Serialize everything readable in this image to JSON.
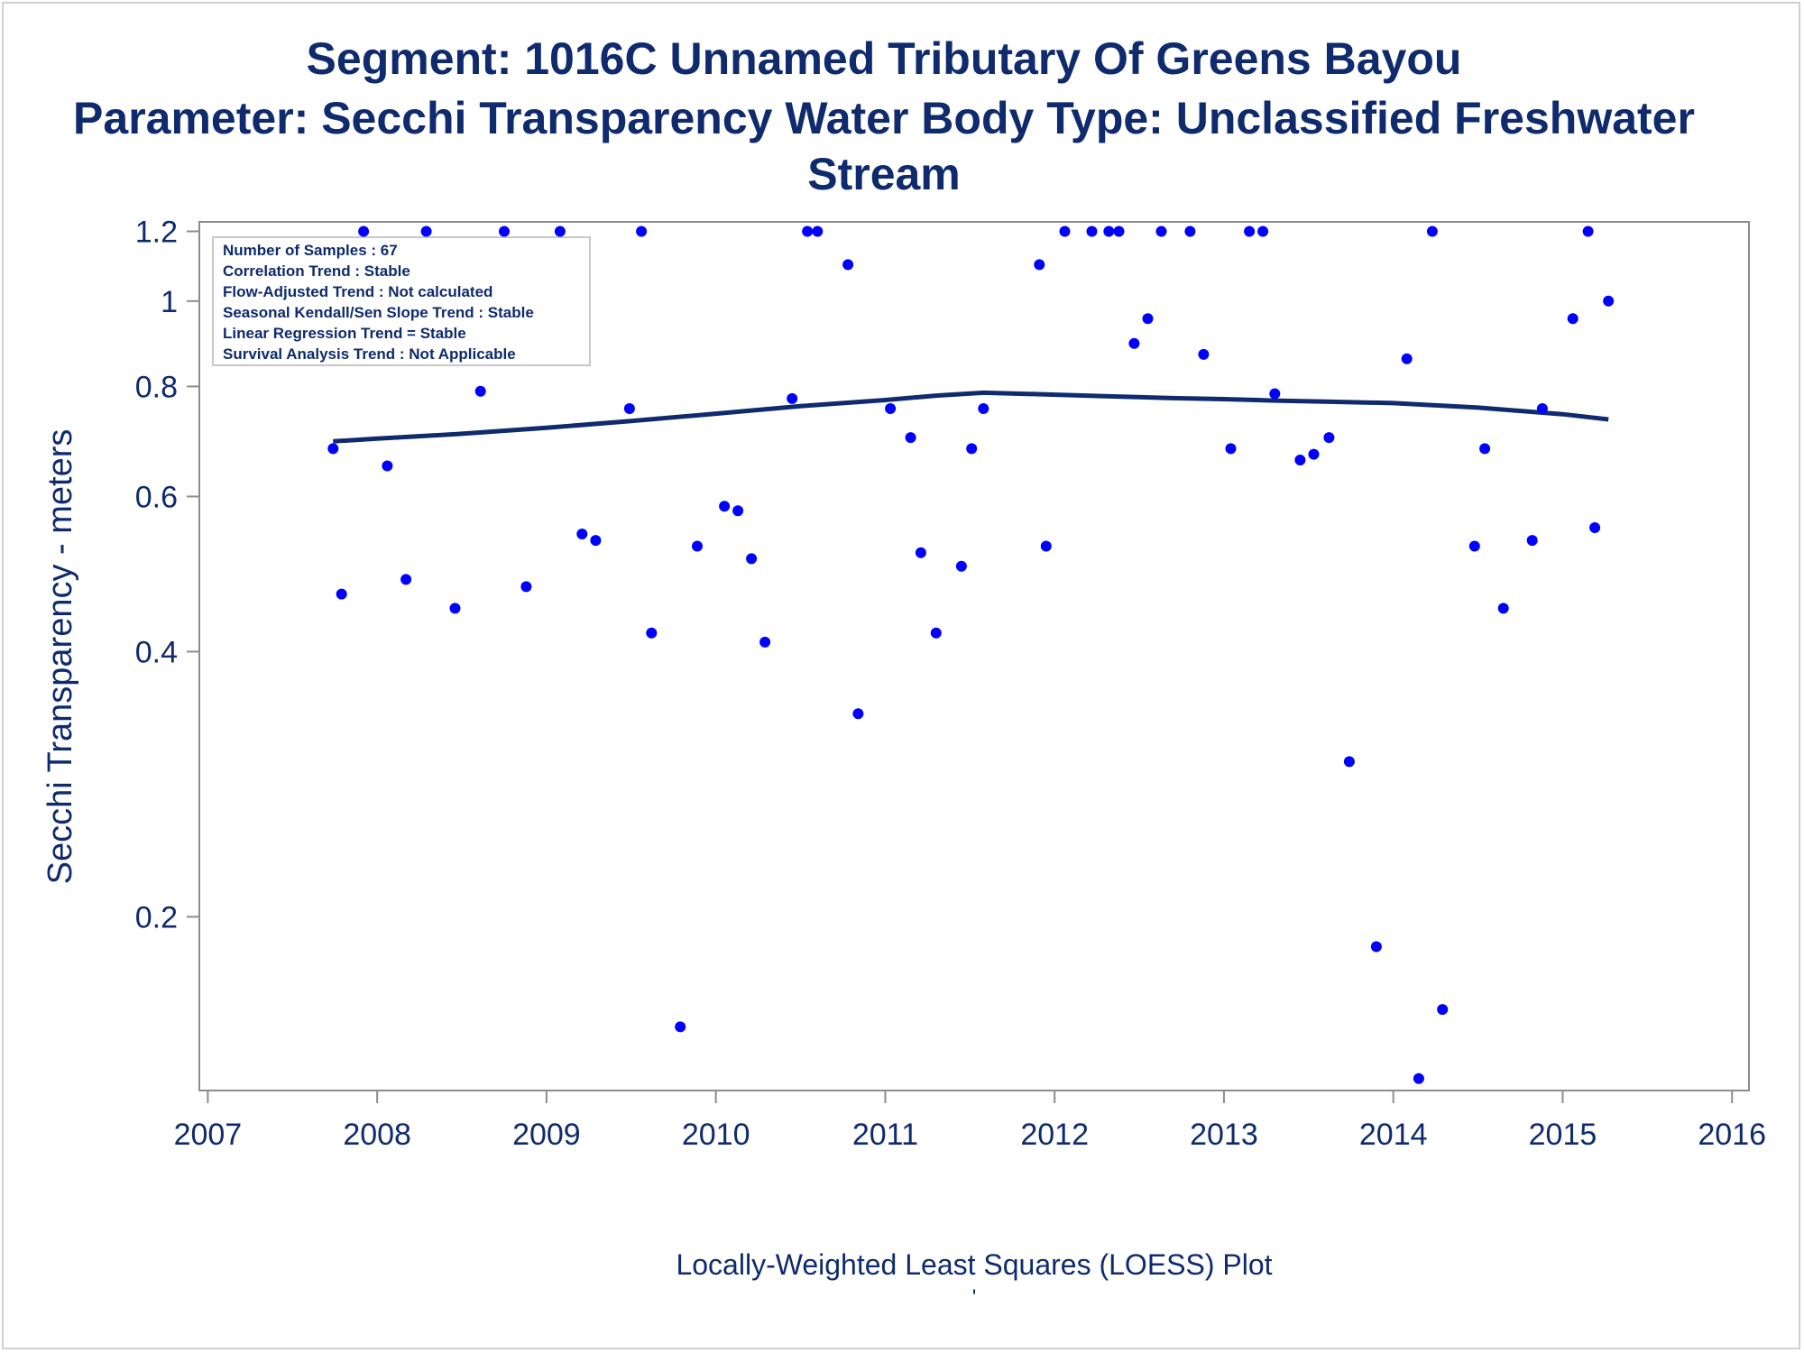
{
  "titles": {
    "line1": "Segment: 1016C  Unnamed Tributary Of Greens Bayou",
    "line2": "Parameter: Secchi Transparency   Water Body Type: Unclassified Freshwater",
    "line3": "Stream"
  },
  "colors": {
    "text": "#0f2b6e",
    "points": "#0000ff",
    "loess": "#0f2b6e",
    "axis": "#8c8c8c"
  },
  "chart_data": {
    "type": "scatter",
    "ylabel": "Secchi Transparency - meters",
    "xlabel": "Locally-Weighted Least Squares (LOESS) Plot",
    "footnote": "'",
    "y_scale": "log",
    "x_ticks": [
      2007,
      2008,
      2009,
      2010,
      2011,
      2012,
      2013,
      2014,
      2015,
      2016
    ],
    "x_tick_labels": [
      "2007",
      "2008",
      "2009",
      "2010",
      "2011",
      "2012",
      "2013",
      "2014",
      "2015",
      "2016"
    ],
    "y_ticks": [
      0.2,
      0.4,
      0.6,
      0.8,
      1,
      1.2
    ],
    "y_tick_labels": [
      "0.2",
      "0.4",
      "0.6",
      "0.8",
      "1",
      "1.2"
    ],
    "xlim": [
      2006.95,
      2016.1
    ],
    "ylim": [
      0.127,
      1.23
    ],
    "legend_position": "top-left",
    "info_box": [
      "Number of Samples : 67",
      "Correlation Trend : Stable",
      "Flow-Adjusted Trend : Not calculated",
      "Seasonal Kendall/Sen Slope Trend : Stable",
      "Linear Regression Trend = Stable",
      "Survival Analysis Trend : Not Applicable"
    ],
    "series": [
      {
        "kind": "points",
        "x": [
          2007.74,
          2007.79,
          2007.92,
          2008.06,
          2008.17,
          2008.29,
          2008.46,
          2008.61,
          2008.75,
          2008.88,
          2009.08,
          2009.21,
          2009.29,
          2009.49,
          2009.56,
          2009.62,
          2009.79,
          2009.89,
          2010.05,
          2010.13,
          2010.21,
          2010.29,
          2010.45,
          2010.54,
          2010.6,
          2010.78,
          2010.84,
          2011.03,
          2011.15,
          2011.21,
          2011.45,
          2011.3,
          2011.51,
          2011.58,
          2011.91,
          2011.95,
          2012.06,
          2012.22,
          2012.32,
          2012.38,
          2012.47,
          2012.55,
          2012.63,
          2012.8,
          2012.88,
          2013.04,
          2013.15,
          2013.23,
          2013.3,
          2013.45,
          2013.53,
          2013.62,
          2013.74,
          2013.9,
          2014.08,
          2014.15,
          2014.23,
          2014.29,
          2014.48,
          2014.54,
          2014.65,
          2014.82,
          2014.88,
          2015.06,
          2015.15,
          2015.19,
          2015.27
        ],
        "y": [
          0.68,
          0.465,
          1.2,
          0.65,
          0.483,
          1.2,
          0.448,
          0.79,
          1.2,
          0.474,
          1.2,
          0.544,
          0.535,
          0.755,
          1.2,
          0.42,
          0.15,
          0.527,
          0.585,
          0.578,
          0.51,
          0.41,
          0.775,
          1.2,
          1.2,
          1.1,
          0.34,
          0.755,
          0.7,
          0.518,
          0.5,
          0.42,
          0.68,
          0.755,
          1.1,
          0.527,
          1.2,
          1.2,
          1.2,
          1.2,
          0.895,
          0.955,
          1.2,
          1.2,
          0.87,
          0.68,
          1.2,
          1.2,
          0.785,
          0.66,
          0.67,
          0.7,
          0.3,
          0.185,
          0.86,
          0.131,
          1.2,
          0.157,
          0.527,
          0.68,
          0.448,
          0.535,
          0.755,
          0.955,
          1.2,
          0.553,
          1.0
        ]
      },
      {
        "kind": "loess",
        "x": [
          2007.74,
          2008.0,
          2008.5,
          2009.0,
          2009.5,
          2010.0,
          2010.5,
          2011.0,
          2011.3,
          2011.58,
          2011.9,
          2012.3,
          2012.7,
          2013.0,
          2013.3,
          2013.6,
          2014.0,
          2014.5,
          2015.0,
          2015.27
        ],
        "y": [
          0.693,
          0.698,
          0.707,
          0.718,
          0.731,
          0.745,
          0.76,
          0.772,
          0.781,
          0.787,
          0.784,
          0.78,
          0.776,
          0.774,
          0.771,
          0.769,
          0.766,
          0.757,
          0.744,
          0.734
        ]
      }
    ]
  }
}
